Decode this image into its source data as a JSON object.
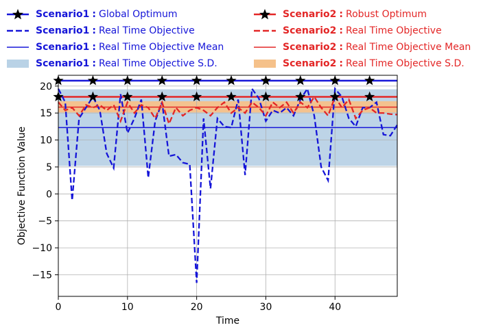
{
  "chart_data": {
    "type": "line",
    "xlabel": "Time",
    "ylabel": "Objective Function Value",
    "xlim": [
      0,
      49
    ],
    "ylim": [
      -19,
      22
    ],
    "xticks": [
      0,
      10,
      20,
      30,
      40
    ],
    "yticks": [
      -15,
      -10,
      -5,
      0,
      5,
      10,
      15,
      20
    ],
    "grid": true,
    "legend_position": "top",
    "colors": {
      "scenario1": "#1515d8",
      "scenario2": "#e32626",
      "sd1": "#b9d2e6",
      "sd2": "#f5c18a"
    },
    "x": [
      0,
      1,
      2,
      3,
      4,
      5,
      6,
      7,
      8,
      9,
      10,
      11,
      12,
      13,
      14,
      15,
      16,
      17,
      18,
      19,
      20,
      21,
      22,
      23,
      24,
      25,
      26,
      27,
      28,
      29,
      30,
      31,
      32,
      33,
      34,
      35,
      36,
      37,
      38,
      39,
      40,
      41,
      42,
      43,
      44,
      45,
      46,
      47,
      48,
      49
    ],
    "marker_x": [
      0,
      5,
      10,
      15,
      20,
      25,
      30,
      35,
      40,
      45
    ],
    "series": [
      {
        "name": "Scenario1",
        "label": "Global Optimum",
        "kind": "optimum",
        "value": 21
      },
      {
        "name": "Scenario1",
        "label": "Real Time Objective",
        "kind": "realtime",
        "values": [
          19.5,
          17,
          -1.2,
          14,
          16,
          18,
          15.5,
          7.5,
          4.8,
          18.5,
          11.3,
          14,
          17.5,
          3,
          13.5,
          17,
          7,
          7.3,
          5.8,
          5.5,
          -16.5,
          14,
          1,
          14,
          12.5,
          12.3,
          17.5,
          3.5,
          19.5,
          17.7,
          13.5,
          15.5,
          15,
          16,
          14.5,
          17.5,
          19.5,
          14.5,
          5,
          2.5,
          19.5,
          18,
          14,
          12.5,
          16,
          16,
          17,
          11,
          10.8,
          12.8
        ]
      },
      {
        "name": "Scenario1",
        "label": "Real Time Objective Mean",
        "kind": "mean",
        "value": 12.3
      },
      {
        "name": "Scenario1",
        "label": "Real Time Objective S.D.",
        "kind": "sd",
        "range": [
          5.2,
          19.4
        ]
      },
      {
        "name": "Scenario2",
        "label": "Robust Optimum",
        "kind": "optimum",
        "value": 18
      },
      {
        "name": "Scenario2",
        "label": "Real Time Objective",
        "kind": "realtime",
        "values": [
          17,
          15.5,
          16,
          14.5,
          16.5,
          16,
          16.5,
          15.5,
          16.5,
          13.5,
          17,
          15,
          16.5,
          16,
          14,
          17,
          13,
          16,
          14.5,
          15.5,
          16,
          15.5,
          14.5,
          16,
          17,
          15,
          16,
          15,
          17,
          16,
          14.5,
          17,
          16,
          17,
          15,
          17,
          16,
          18,
          16,
          14.5,
          18,
          16,
          17.5,
          14,
          15.5,
          16,
          15,
          15,
          14.8,
          14.7
        ]
      },
      {
        "name": "Scenario2",
        "label": "Real Time Objective Mean",
        "kind": "mean",
        "value": 16.1
      },
      {
        "name": "Scenario2",
        "label": "Real Time Objective S.D.",
        "kind": "sd",
        "range": [
          15.1,
          17.2
        ]
      }
    ]
  },
  "legend": {
    "sep": ":",
    "left": [
      {
        "name": "Scenario1",
        "label": "Global Optimum"
      },
      {
        "name": "Scenario1",
        "label": "Real Time Objective"
      },
      {
        "name": "Scenario1",
        "label": "Real Time Objective Mean"
      },
      {
        "name": "Scenario1",
        "label": "Real Time Objective S.D."
      }
    ],
    "right": [
      {
        "name": "Scenario2",
        "label": "Robust Optimum"
      },
      {
        "name": "Scenario2",
        "label": "Real Time Objective"
      },
      {
        "name": "Scenario2",
        "label": "Real Time Objective Mean"
      },
      {
        "name": "Scenario2",
        "label": "Real Time Objective S.D."
      }
    ]
  }
}
